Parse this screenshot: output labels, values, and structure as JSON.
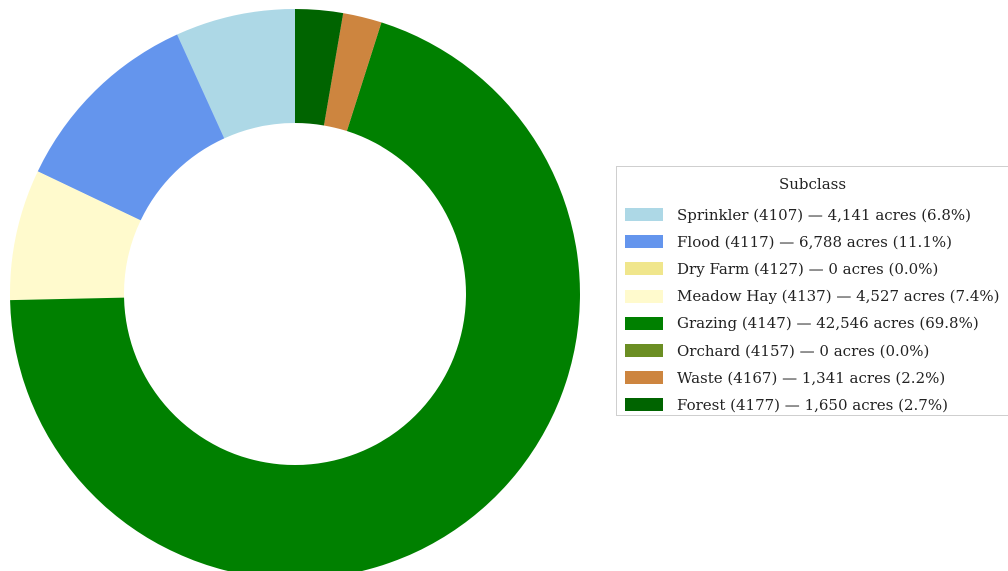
{
  "chart_data": {
    "type": "pie",
    "donut": true,
    "legend_title": "Subclass",
    "legend_position": "right",
    "categories": [
      "Sprinkler (4107)",
      "Flood (4117)",
      "Dry Farm (4127)",
      "Meadow Hay (4137)",
      "Grazing (4147)",
      "Orchard (4157)",
      "Waste (4167)",
      "Forest (4177)"
    ],
    "values": [
      4141,
      6788,
      0,
      4527,
      42546,
      0,
      1341,
      1650
    ],
    "unit": "acres",
    "percents": [
      6.8,
      11.1,
      0.0,
      7.4,
      69.8,
      0.0,
      2.2,
      2.7
    ],
    "colors": [
      "#add8e6",
      "#6495ed",
      "#f0e68c",
      "#fffacd",
      "#008000",
      "#6b8e23",
      "#cd853f",
      "#006400"
    ],
    "legend_labels": [
      "Sprinkler (4107) — 4,141 acres (6.8%)",
      "Flood (4117) — 6,788 acres (11.1%)",
      "Dry Farm (4127) — 0 acres (0.0%)",
      "Meadow Hay (4137) — 4,527 acres (7.4%)",
      "Grazing (4147) — 42,546 acres (69.8%)",
      "Orchard (4157) — 0 acres (0.0%)",
      "Waste (4167) — 1,341 acres (2.2%)",
      "Forest (4177) — 1,650 acres (2.7%)"
    ],
    "direction": "counterclockwise-from-top"
  }
}
